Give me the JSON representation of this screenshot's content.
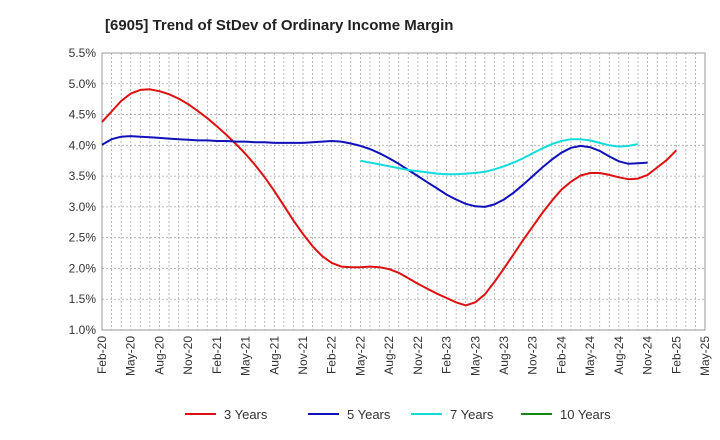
{
  "chart_data": {
    "type": "line",
    "title": "[6905]  Trend of StDev of Ordinary Income Margin",
    "xlabel": "",
    "ylabel": "",
    "ylim": [
      1.0,
      5.5
    ],
    "yticks": [
      1.0,
      1.5,
      2.0,
      2.5,
      3.0,
      3.5,
      4.0,
      4.5,
      5.0,
      5.5
    ],
    "ytick_labels": [
      "1.0%",
      "1.5%",
      "2.0%",
      "2.5%",
      "3.0%",
      "3.5%",
      "4.0%",
      "4.5%",
      "5.0%",
      "5.5%"
    ],
    "xticks": [
      "Feb-20",
      "May-20",
      "Aug-20",
      "Nov-20",
      "Feb-21",
      "May-21",
      "Aug-21",
      "Nov-21",
      "Feb-22",
      "May-22",
      "Aug-22",
      "Nov-22",
      "Feb-23",
      "May-23",
      "Aug-23",
      "Nov-23",
      "Feb-24",
      "May-24",
      "Aug-24",
      "Nov-24",
      "Feb-25",
      "May-25"
    ],
    "grid": true,
    "legend_position": "bottom",
    "series": [
      {
        "name": "3 Years",
        "color": "#dd1111",
        "points": [
          [
            "Feb-20",
            4.38
          ],
          [
            "Mar-20",
            4.55
          ],
          [
            "Apr-20",
            4.72
          ],
          [
            "May-20",
            4.84
          ],
          [
            "Jun-20",
            4.9
          ],
          [
            "Jul-20",
            4.91
          ],
          [
            "Aug-20",
            4.88
          ],
          [
            "Sep-20",
            4.83
          ],
          [
            "Oct-20",
            4.76
          ],
          [
            "Nov-20",
            4.67
          ],
          [
            "Dec-20",
            4.56
          ],
          [
            "Jan-21",
            4.44
          ],
          [
            "Feb-21",
            4.31
          ],
          [
            "Mar-21",
            4.17
          ],
          [
            "Apr-21",
            4.02
          ],
          [
            "May-21",
            3.86
          ],
          [
            "Jun-21",
            3.68
          ],
          [
            "Jul-21",
            3.48
          ],
          [
            "Aug-21",
            3.26
          ],
          [
            "Sep-21",
            3.02
          ],
          [
            "Oct-21",
            2.78
          ],
          [
            "Nov-21",
            2.56
          ],
          [
            "Dec-21",
            2.36
          ],
          [
            "Jan-22",
            2.2
          ],
          [
            "Feb-22",
            2.09
          ],
          [
            "Mar-22",
            2.03
          ],
          [
            "Apr-22",
            2.02
          ],
          [
            "May-22",
            2.02
          ],
          [
            "Jun-22",
            2.03
          ],
          [
            "Jul-22",
            2.02
          ],
          [
            "Aug-22",
            1.99
          ],
          [
            "Sep-22",
            1.93
          ],
          [
            "Oct-22",
            1.84
          ],
          [
            "Nov-22",
            1.75
          ],
          [
            "Dec-22",
            1.67
          ],
          [
            "Jan-23",
            1.59
          ],
          [
            "Feb-23",
            1.52
          ],
          [
            "Mar-23",
            1.45
          ],
          [
            "Apr-23",
            1.4
          ],
          [
            "May-23",
            1.45
          ],
          [
            "Jun-23",
            1.58
          ],
          [
            "Jul-23",
            1.78
          ],
          [
            "Aug-23",
            2.0
          ],
          [
            "Sep-23",
            2.23
          ],
          [
            "Oct-23",
            2.46
          ],
          [
            "Nov-23",
            2.68
          ],
          [
            "Dec-23",
            2.9
          ],
          [
            "Jan-24",
            3.1
          ],
          [
            "Feb-24",
            3.28
          ],
          [
            "Mar-24",
            3.41
          ],
          [
            "Apr-24",
            3.51
          ],
          [
            "May-24",
            3.55
          ],
          [
            "Jun-24",
            3.55
          ],
          [
            "Jul-24",
            3.52
          ],
          [
            "Aug-24",
            3.48
          ],
          [
            "Sep-24",
            3.45
          ],
          [
            "Oct-24",
            3.46
          ],
          [
            "Nov-24",
            3.52
          ],
          [
            "Dec-24",
            3.64
          ],
          [
            "Jan-25",
            3.76
          ],
          [
            "Feb-25",
            3.92
          ]
        ]
      },
      {
        "name": "5 Years",
        "color": "#1111bb",
        "points": [
          [
            "Feb-20",
            4.01
          ],
          [
            "Mar-20",
            4.1
          ],
          [
            "Apr-20",
            4.14
          ],
          [
            "May-20",
            4.15
          ],
          [
            "Jun-20",
            4.14
          ],
          [
            "Jul-20",
            4.13
          ],
          [
            "Aug-20",
            4.12
          ],
          [
            "Sep-20",
            4.11
          ],
          [
            "Oct-20",
            4.1
          ],
          [
            "Nov-20",
            4.09
          ],
          [
            "Dec-20",
            4.08
          ],
          [
            "Jan-21",
            4.08
          ],
          [
            "Feb-21",
            4.07
          ],
          [
            "Mar-21",
            4.07
          ],
          [
            "Apr-21",
            4.06
          ],
          [
            "May-21",
            4.06
          ],
          [
            "Jun-21",
            4.05
          ],
          [
            "Jul-21",
            4.05
          ],
          [
            "Aug-21",
            4.04
          ],
          [
            "Sep-21",
            4.04
          ],
          [
            "Oct-21",
            4.04
          ],
          [
            "Nov-21",
            4.04
          ],
          [
            "Dec-21",
            4.05
          ],
          [
            "Jan-22",
            4.06
          ],
          [
            "Feb-22",
            4.07
          ],
          [
            "Mar-22",
            4.06
          ],
          [
            "Apr-22",
            4.03
          ],
          [
            "May-22",
            3.99
          ],
          [
            "Jun-22",
            3.94
          ],
          [
            "Jul-22",
            3.87
          ],
          [
            "Aug-22",
            3.79
          ],
          [
            "Sep-22",
            3.7
          ],
          [
            "Oct-22",
            3.6
          ],
          [
            "Nov-22",
            3.5
          ],
          [
            "Dec-22",
            3.4
          ],
          [
            "Jan-23",
            3.3
          ],
          [
            "Feb-23",
            3.2
          ],
          [
            "Mar-23",
            3.12
          ],
          [
            "Apr-23",
            3.05
          ],
          [
            "May-23",
            3.01
          ],
          [
            "Jun-23",
            3.0
          ],
          [
            "Jul-23",
            3.04
          ],
          [
            "Aug-23",
            3.12
          ],
          [
            "Sep-23",
            3.23
          ],
          [
            "Oct-23",
            3.36
          ],
          [
            "Nov-23",
            3.5
          ],
          [
            "Dec-23",
            3.64
          ],
          [
            "Jan-24",
            3.77
          ],
          [
            "Feb-24",
            3.88
          ],
          [
            "Mar-24",
            3.96
          ],
          [
            "Apr-24",
            3.99
          ],
          [
            "May-24",
            3.97
          ],
          [
            "Jun-24",
            3.91
          ],
          [
            "Jul-24",
            3.82
          ],
          [
            "Aug-24",
            3.74
          ],
          [
            "Sep-24",
            3.7
          ],
          [
            "Oct-24",
            3.71
          ],
          [
            "Nov-24",
            3.72
          ]
        ]
      },
      {
        "name": "7 Years",
        "color": "#11dddd",
        "points": [
          [
            "May-22",
            3.75
          ],
          [
            "Jun-22",
            3.72
          ],
          [
            "Jul-22",
            3.69
          ],
          [
            "Aug-22",
            3.66
          ],
          [
            "Sep-22",
            3.63
          ],
          [
            "Oct-22",
            3.6
          ],
          [
            "Nov-22",
            3.58
          ],
          [
            "Dec-22",
            3.56
          ],
          [
            "Jan-23",
            3.54
          ],
          [
            "Feb-23",
            3.53
          ],
          [
            "Mar-23",
            3.53
          ],
          [
            "Apr-23",
            3.54
          ],
          [
            "May-23",
            3.55
          ],
          [
            "Jun-23",
            3.57
          ],
          [
            "Jul-23",
            3.61
          ],
          [
            "Aug-23",
            3.66
          ],
          [
            "Sep-23",
            3.72
          ],
          [
            "Oct-23",
            3.79
          ],
          [
            "Nov-23",
            3.87
          ],
          [
            "Dec-23",
            3.95
          ],
          [
            "Jan-24",
            4.02
          ],
          [
            "Feb-24",
            4.07
          ],
          [
            "Mar-24",
            4.1
          ],
          [
            "Apr-24",
            4.1
          ],
          [
            "May-24",
            4.08
          ],
          [
            "Jun-24",
            4.04
          ],
          [
            "Jul-24",
            4.0
          ],
          [
            "Aug-24",
            3.98
          ],
          [
            "Sep-24",
            3.99
          ],
          [
            "Oct-24",
            4.02
          ]
        ]
      },
      {
        "name": "10 Years",
        "color": "#118811",
        "points": []
      }
    ]
  }
}
